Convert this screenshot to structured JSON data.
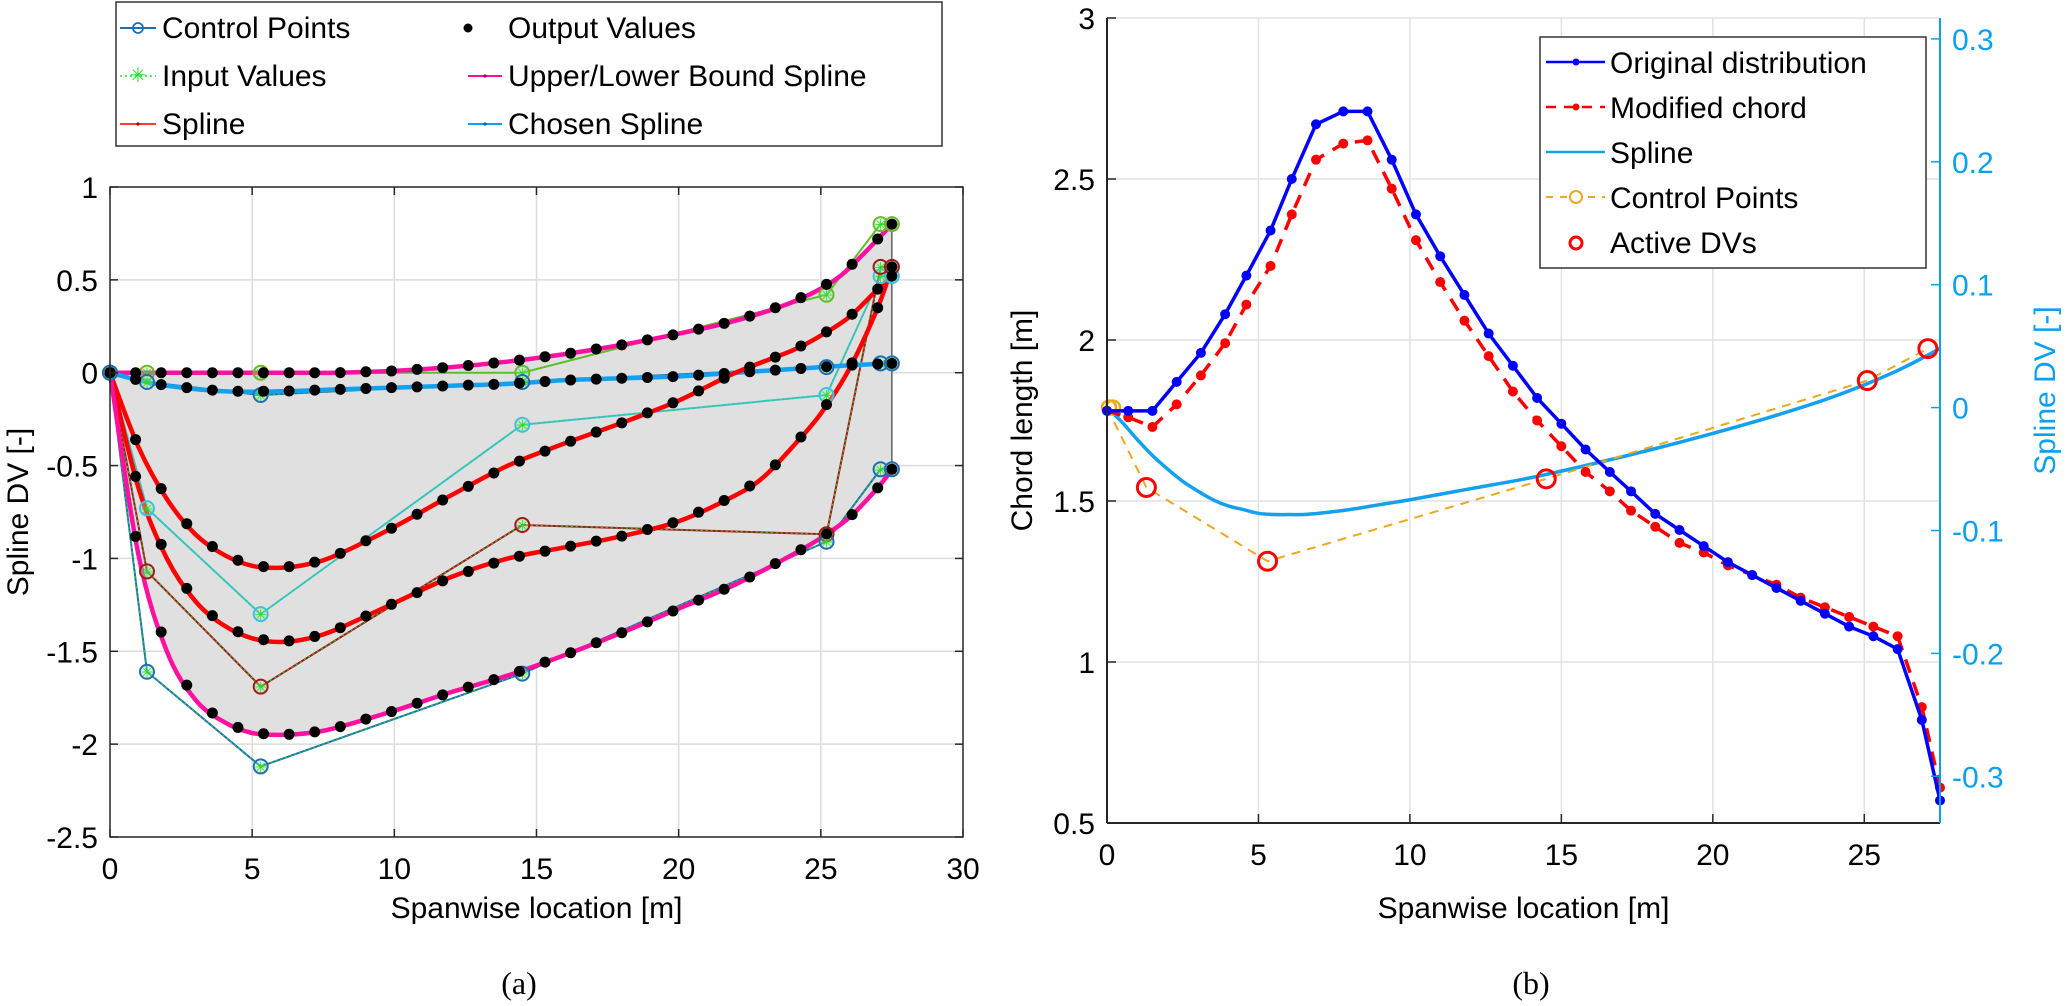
{
  "chart_data": [
    {
      "id": "a",
      "type": "line",
      "caption": "(a)",
      "xlabel": "Spanwise location [m]",
      "ylabel": "Spline DV [-]",
      "xlim": [
        0,
        30
      ],
      "ylim": [
        -2.5,
        1
      ],
      "xticks": [
        "0",
        "5",
        "10",
        "15",
        "20",
        "25",
        "30"
      ],
      "yticks": [
        "1",
        "0.5",
        "0",
        "-0.5",
        "-1",
        "-1.5",
        "-2",
        "-2.5"
      ],
      "grid": true,
      "legend": {
        "placement": "top (outside)",
        "entries": [
          "Control Points",
          "Output Values",
          "Input Values",
          "Upper/Lower Bound Spline",
          "Spline",
          "Chosen Spline"
        ]
      },
      "colors": {
        "control_points": "#1f6fb4",
        "output_values": "#000000",
        "input_values": "#22dd22",
        "bound_spline": "#ff10a0",
        "spline": "#ff0000",
        "chosen_spline": "#13a0ee",
        "fill": "#e0e0e0"
      },
      "control_x": [
        0,
        1.3,
        5.3,
        14.5,
        25.2,
        27.1,
        27.5
      ],
      "series": [
        {
          "name": "Upper Bound Spline",
          "kind": "bound",
          "control_y": [
            0,
            0,
            0,
            0,
            0.42,
            0.8,
            0.8
          ],
          "control_color": "#6cb82c",
          "curve": {
            "x": [
              0,
              2,
              4,
              6,
              8,
              10,
              12,
              14,
              16,
              18,
              20,
              22,
              24,
              25.5,
              26.5,
              27.5
            ],
            "y": [
              0,
              0,
              0,
              0,
              0,
              0.01,
              0.03,
              0.06,
              0.1,
              0.15,
              0.21,
              0.28,
              0.38,
              0.5,
              0.64,
              0.8
            ]
          }
        },
        {
          "name": "Chosen Spline",
          "kind": "chosen",
          "control_y": [
            0,
            -0.05,
            -0.12,
            -0.05,
            0.03,
            0.05,
            0.05
          ],
          "control_color": "#1f6fb4",
          "curve": {
            "x": [
              0,
              1,
              2,
              4,
              6,
              8,
              10,
              12,
              14,
              16,
              18,
              20,
              22,
              24,
              26,
              27.5
            ],
            "y": [
              0,
              -0.04,
              -0.07,
              -0.1,
              -0.1,
              -0.09,
              -0.08,
              -0.07,
              -0.06,
              -0.04,
              -0.03,
              -0.02,
              0,
              0.02,
              0.04,
              0.05
            ]
          }
        },
        {
          "name": "Spline 1",
          "kind": "spline",
          "control_y": [
            0,
            -0.73,
            -1.3,
            -0.28,
            -0.12,
            0.52,
            0.52
          ],
          "control_color": "#40c0e0",
          "curve": {
            "x": [
              0,
              1,
              2,
              3,
              4,
              5,
              6,
              7,
              8,
              10,
              12,
              14,
              16,
              18,
              20,
              22,
              24,
              25,
              26,
              27,
              27.5
            ],
            "y": [
              0,
              -0.4,
              -0.68,
              -0.87,
              -0.98,
              -1.04,
              -1.05,
              -1.03,
              -0.98,
              -0.83,
              -0.66,
              -0.5,
              -0.38,
              -0.27,
              -0.15,
              0.0,
              0.12,
              0.2,
              0.3,
              0.45,
              0.52
            ]
          }
        },
        {
          "name": "Spline 2",
          "kind": "spline",
          "control_y": [
            0,
            -1.07,
            -1.69,
            -0.82,
            -0.87,
            0.57,
            0.57
          ],
          "control_color": "#a01a1a",
          "curve": {
            "x": [
              0,
              1,
              2,
              3,
              4,
              5,
              6,
              7,
              8,
              10,
              12,
              14,
              16,
              18,
              20,
              22,
              23,
              24,
              25,
              26,
              27,
              27.5
            ],
            "y": [
              0,
              -0.62,
              -1.0,
              -1.23,
              -1.36,
              -1.43,
              -1.45,
              -1.43,
              -1.38,
              -1.24,
              -1.1,
              -1.0,
              -0.94,
              -0.88,
              -0.8,
              -0.66,
              -0.56,
              -0.4,
              -0.22,
              0.02,
              0.35,
              0.57
            ]
          }
        },
        {
          "name": "Lower Bound Spline",
          "kind": "bound",
          "control_y": [
            0,
            -1.61,
            -2.12,
            -1.62,
            -0.91,
            -0.52,
            -0.52
          ],
          "control_color": "#1f6fb4",
          "curve": {
            "x": [
              0,
              1,
              2,
              3,
              4,
              5,
              6,
              7,
              8,
              10,
              12,
              14,
              16,
              18,
              20,
              22,
              24,
              25,
              26,
              27,
              27.5
            ],
            "y": [
              0,
              -0.98,
              -1.5,
              -1.76,
              -1.88,
              -1.94,
              -1.95,
              -1.94,
              -1.91,
              -1.82,
              -1.72,
              -1.63,
              -1.52,
              -1.4,
              -1.27,
              -1.14,
              -0.98,
              -0.89,
              -0.78,
              -0.62,
              -0.52
            ]
          }
        }
      ],
      "output_sample_x": [
        0,
        0.9,
        1.8,
        2.7,
        3.6,
        4.5,
        5.4,
        6.3,
        7.2,
        8.1,
        9.0,
        9.9,
        10.8,
        11.7,
        12.6,
        13.5,
        14.4,
        15.3,
        16.2,
        17.1,
        18.0,
        18.9,
        19.8,
        20.7,
        21.6,
        22.5,
        23.4,
        24.3,
        25.2,
        26.1,
        27.0,
        27.5
      ]
    },
    {
      "id": "b",
      "type": "line",
      "caption": "(b)",
      "xlabel": "Spanwise location [m]",
      "ylabel": "Chord length [m]",
      "ylabel_right": "Spline DV [-]",
      "xlim": [
        0,
        27.5
      ],
      "ylim": [
        0.5,
        3
      ],
      "ylim_right": [
        -0.338,
        0.317
      ],
      "xticks": [
        "0",
        "5",
        "10",
        "15",
        "20",
        "25"
      ],
      "yticks": [
        "3",
        "2.5",
        "2",
        "1.5",
        "1",
        "0.5"
      ],
      "yticks_right": [
        "0.3",
        "0.2",
        "0.1",
        "0",
        "-0.1",
        "-0.2",
        "-0.3"
      ],
      "grid": true,
      "legend": {
        "placement": "top-right",
        "entries": [
          "Original distribution",
          "Modified chord",
          "Spline",
          "Control Points",
          "Active DVs"
        ]
      },
      "colors": {
        "original": "#0000ff",
        "modified": "#ff0000",
        "spline": "#13a0ee",
        "control_points": "#eda81c",
        "active_dvs": "#ff0000",
        "right_axis": "#0aa0f0"
      },
      "series": [
        {
          "name": "Original distribution",
          "axis": "left",
          "x": [
            0,
            0.7,
            1.5,
            2.3,
            3.1,
            3.9,
            4.6,
            5.4,
            6.1,
            6.9,
            7.8,
            8.6,
            9.4,
            10.2,
            11,
            11.8,
            12.6,
            13.4,
            14.2,
            15,
            15.8,
            16.6,
            17.3,
            18.1,
            18.9,
            19.7,
            20.5,
            21.3,
            22.1,
            22.9,
            23.7,
            24.5,
            25.3,
            26.1,
            26.9,
            27.5
          ],
          "y": [
            1.78,
            1.78,
            1.78,
            1.87,
            1.96,
            2.08,
            2.2,
            2.34,
            2.5,
            2.67,
            2.71,
            2.71,
            2.56,
            2.39,
            2.26,
            2.14,
            2.02,
            1.92,
            1.82,
            1.74,
            1.66,
            1.59,
            1.53,
            1.46,
            1.41,
            1.36,
            1.31,
            1.27,
            1.23,
            1.19,
            1.15,
            1.11,
            1.08,
            1.04,
            0.82,
            0.57
          ]
        },
        {
          "name": "Modified chord",
          "axis": "left",
          "x": [
            0,
            0.7,
            1.5,
            2.3,
            3.1,
            3.9,
            4.6,
            5.4,
            6.1,
            6.9,
            7.8,
            8.6,
            9.4,
            10.2,
            11,
            11.8,
            12.6,
            13.4,
            14.2,
            15,
            15.8,
            16.6,
            17.3,
            18.1,
            18.9,
            19.7,
            20.5,
            21.3,
            22.1,
            22.9,
            23.7,
            24.5,
            25.3,
            26.1,
            26.9,
            27.5
          ],
          "y": [
            1.78,
            1.76,
            1.73,
            1.8,
            1.89,
            1.99,
            2.11,
            2.23,
            2.39,
            2.56,
            2.61,
            2.62,
            2.47,
            2.31,
            2.18,
            2.06,
            1.95,
            1.84,
            1.75,
            1.67,
            1.59,
            1.53,
            1.47,
            1.42,
            1.37,
            1.34,
            1.3,
            1.27,
            1.24,
            1.2,
            1.17,
            1.14,
            1.11,
            1.08,
            0.86,
            0.61
          ]
        },
        {
          "name": "Spline",
          "axis": "right",
          "x": [
            0,
            0.5,
            1,
            1.5,
            2,
            2.5,
            3,
            3.5,
            4,
            4.5,
            5,
            5.5,
            6,
            6.5,
            7,
            8,
            9,
            10,
            12,
            14,
            16,
            18,
            20,
            22,
            24,
            26,
            27.5
          ],
          "y": [
            0,
            -0.012,
            -0.026,
            -0.039,
            -0.05,
            -0.06,
            -0.068,
            -0.075,
            -0.08,
            -0.083,
            -0.086,
            -0.087,
            -0.087,
            -0.087,
            -0.086,
            -0.083,
            -0.079,
            -0.075,
            -0.066,
            -0.057,
            -0.046,
            -0.034,
            -0.021,
            -0.007,
            0.009,
            0.029,
            0.048
          ]
        },
        {
          "name": "Control Points",
          "axis": "right",
          "x": [
            0,
            1.3,
            5.3,
            14.5,
            25.1,
            27.1
          ],
          "y": [
            0,
            -0.065,
            -0.125,
            -0.058,
            0.022,
            0.048
          ]
        },
        {
          "name": "Active DVs",
          "axis": "right",
          "x": [
            1.3,
            5.3,
            14.5,
            25.1,
            27.1
          ],
          "y": [
            -0.065,
            -0.125,
            -0.058,
            0.022,
            0.048
          ]
        }
      ]
    }
  ]
}
